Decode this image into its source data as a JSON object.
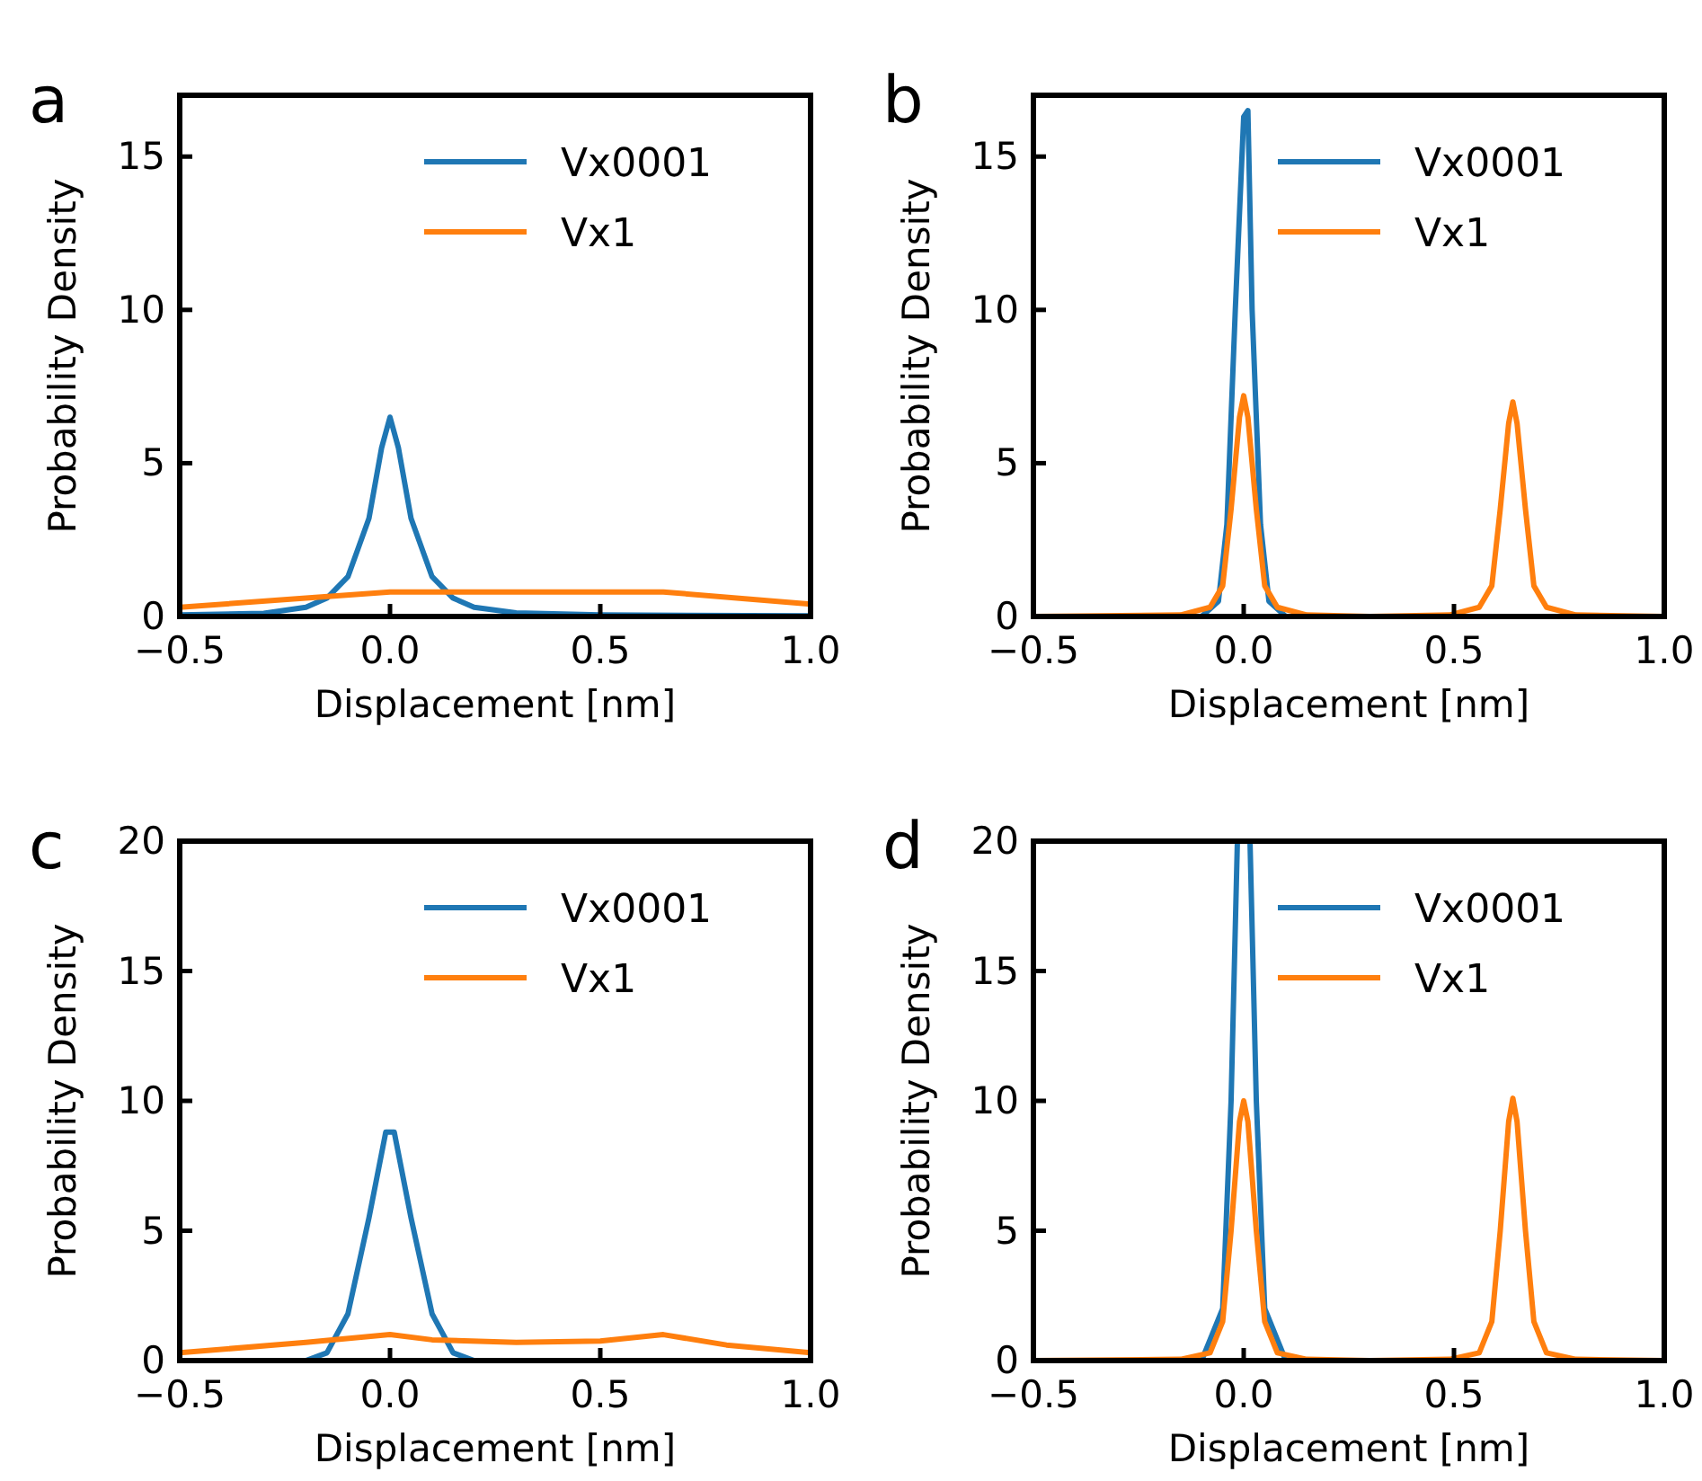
{
  "chart_data": [
    {
      "type": "line",
      "title": "a",
      "xlabel": "Displacement [nm]",
      "ylabel": "Probability Density",
      "xlim": [
        -0.5,
        1.0
      ],
      "ylim": [
        0,
        17
      ],
      "xticks": [
        {
          "value": -0.5,
          "label": "−0.5"
        },
        {
          "value": 0,
          "label": "0.0"
        },
        {
          "value": 0.5,
          "label": "0.5"
        },
        {
          "value": 1.0,
          "label": "1.0"
        }
      ],
      "yticks": [
        0,
        5,
        10,
        15
      ],
      "legend": "top right",
      "line_style": "solid",
      "series": [
        {
          "name": "Vx0001",
          "color": "#1f77b4",
          "x": [
            -0.5,
            -0.3,
            -0.2,
            -0.15,
            -0.1,
            -0.05,
            -0.02,
            0,
            0.02,
            0.05,
            0.1,
            0.15,
            0.2,
            0.3,
            0.5,
            1.0
          ],
          "values": [
            0.05,
            0.1,
            0.3,
            0.6,
            1.3,
            3.2,
            5.5,
            6.5,
            5.5,
            3.2,
            1.3,
            0.6,
            0.3,
            0.12,
            0.05,
            0.02
          ]
        },
        {
          "name": "Vx1",
          "color": "#ff7f0e",
          "x": [
            -0.5,
            -0.2,
            0,
            0.3,
            0.65,
            1.0
          ],
          "values": [
            0.3,
            0.6,
            0.8,
            0.8,
            0.8,
            0.4
          ]
        }
      ]
    },
    {
      "type": "line",
      "title": "b",
      "xlabel": "Displacement [nm]",
      "ylabel": "Probability Density",
      "xlim": [
        -0.5,
        1.0
      ],
      "ylim": [
        0,
        17
      ],
      "xticks": [
        {
          "value": -0.5,
          "label": "−0.5"
        },
        {
          "value": 0,
          "label": "0.0"
        },
        {
          "value": 0.5,
          "label": "0.5"
        },
        {
          "value": 1.0,
          "label": "1.0"
        }
      ],
      "yticks": [
        0,
        5,
        10,
        15
      ],
      "legend": "top right",
      "line_style": "solid",
      "series": [
        {
          "name": "Vx0001",
          "color": "#1f77b4",
          "x": [
            -0.5,
            -0.1,
            -0.06,
            -0.04,
            -0.02,
            0,
            0.01,
            0.02,
            0.04,
            0.06,
            0.1,
            1.0
          ],
          "values": [
            0,
            0,
            0.5,
            3,
            10,
            16.3,
            16.5,
            10,
            3,
            0.5,
            0,
            0
          ]
        },
        {
          "name": "Vx1",
          "color": "#ff7f0e",
          "x": [
            -0.5,
            -0.15,
            -0.08,
            -0.05,
            -0.03,
            -0.01,
            0,
            0.01,
            0.03,
            0.05,
            0.08,
            0.15,
            0.3,
            0.49,
            0.56,
            0.59,
            0.61,
            0.63,
            0.64,
            0.65,
            0.67,
            0.69,
            0.72,
            0.79,
            1.0
          ],
          "values": [
            0,
            0.05,
            0.3,
            1,
            3.5,
            6.5,
            7.2,
            6.5,
            3.5,
            1,
            0.3,
            0.05,
            0,
            0.05,
            0.3,
            1,
            3.5,
            6.3,
            7.0,
            6.3,
            3.5,
            1,
            0.3,
            0.05,
            0
          ]
        }
      ]
    },
    {
      "type": "line",
      "title": "c",
      "xlabel": "Displacement [nm]",
      "ylabel": "Probability Density",
      "xlim": [
        -0.5,
        1.0
      ],
      "ylim": [
        0,
        20
      ],
      "xticks": [
        {
          "value": -0.5,
          "label": "−0.5"
        },
        {
          "value": 0,
          "label": "0.0"
        },
        {
          "value": 0.5,
          "label": "0.5"
        },
        {
          "value": 1.0,
          "label": "1.0"
        }
      ],
      "yticks": [
        0,
        5,
        10,
        15,
        20
      ],
      "legend": "top right",
      "line_style": "solid",
      "series": [
        {
          "name": "Vx0001",
          "color": "#1f77b4",
          "x": [
            -0.2,
            -0.15,
            -0.1,
            -0.05,
            -0.01,
            0.01,
            0.05,
            0.1,
            0.15,
            0.2
          ],
          "values": [
            0,
            0.3,
            1.8,
            5.5,
            8.8,
            8.8,
            5.5,
            1.8,
            0.3,
            0
          ]
        },
        {
          "name": "Vx1",
          "color": "#ff7f0e",
          "x": [
            -0.5,
            -0.2,
            0,
            0.1,
            0.3,
            0.5,
            0.65,
            0.8,
            1.0
          ],
          "values": [
            0.3,
            0.7,
            1.0,
            0.8,
            0.7,
            0.75,
            1.0,
            0.6,
            0.3
          ]
        }
      ]
    },
    {
      "type": "line",
      "title": "d",
      "xlabel": "Displacement [nm]",
      "ylabel": "Probability Density",
      "xlim": [
        -0.5,
        1.0
      ],
      "ylim": [
        0,
        20
      ],
      "xticks": [
        {
          "value": -0.5,
          "label": "−0.5"
        },
        {
          "value": 0,
          "label": "0.0"
        },
        {
          "value": 0.5,
          "label": "0.5"
        },
        {
          "value": 1.0,
          "label": "1.0"
        }
      ],
      "yticks": [
        0,
        5,
        10,
        15,
        20
      ],
      "legend": "top right",
      "line_style": "solid",
      "series": [
        {
          "name": "Vx0001",
          "color": "#1f77b4",
          "x": [
            -0.5,
            -0.1,
            -0.05,
            -0.03,
            -0.015,
            0,
            0.015,
            0.03,
            0.05,
            0.1,
            1.0
          ],
          "values": [
            0,
            0,
            2,
            10,
            20,
            null,
            20,
            10,
            2,
            0,
            0
          ]
        },
        {
          "name": "Vx1",
          "color": "#ff7f0e",
          "x": [
            -0.5,
            -0.15,
            -0.08,
            -0.05,
            -0.03,
            -0.01,
            0,
            0.01,
            0.03,
            0.05,
            0.08,
            0.15,
            0.3,
            0.49,
            0.56,
            0.59,
            0.61,
            0.63,
            0.64,
            0.65,
            0.67,
            0.69,
            0.72,
            0.79,
            1.0
          ],
          "values": [
            0,
            0.05,
            0.3,
            1.5,
            5,
            9.2,
            10,
            9.2,
            5,
            1.5,
            0.3,
            0.05,
            0,
            0.05,
            0.3,
            1.5,
            5,
            9.2,
            10.1,
            9.2,
            5,
            1.5,
            0.3,
            0.05,
            0
          ]
        }
      ]
    }
  ]
}
